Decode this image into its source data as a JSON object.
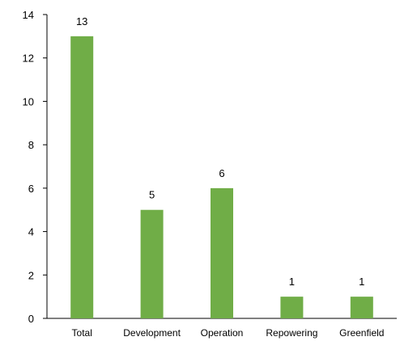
{
  "chart_data": {
    "type": "bar",
    "title": "",
    "xlabel": "",
    "ylabel": "",
    "categories": [
      "Total",
      "Development",
      "Operation",
      "Repowering",
      "Greenfield"
    ],
    "values": [
      13,
      5,
      6,
      1,
      1
    ],
    "data_labels": [
      "13",
      "5",
      "6",
      "1",
      "1"
    ],
    "ylim": [
      0,
      14
    ],
    "yticks": [
      0,
      2,
      4,
      6,
      8,
      10,
      12,
      14
    ],
    "ytick_labels": [
      "0",
      "2",
      "4",
      "6",
      "8",
      "10",
      "12",
      "14"
    ],
    "grid": false,
    "legend": "none",
    "bar_color": "#70ad47",
    "axis_color": "#000000"
  }
}
